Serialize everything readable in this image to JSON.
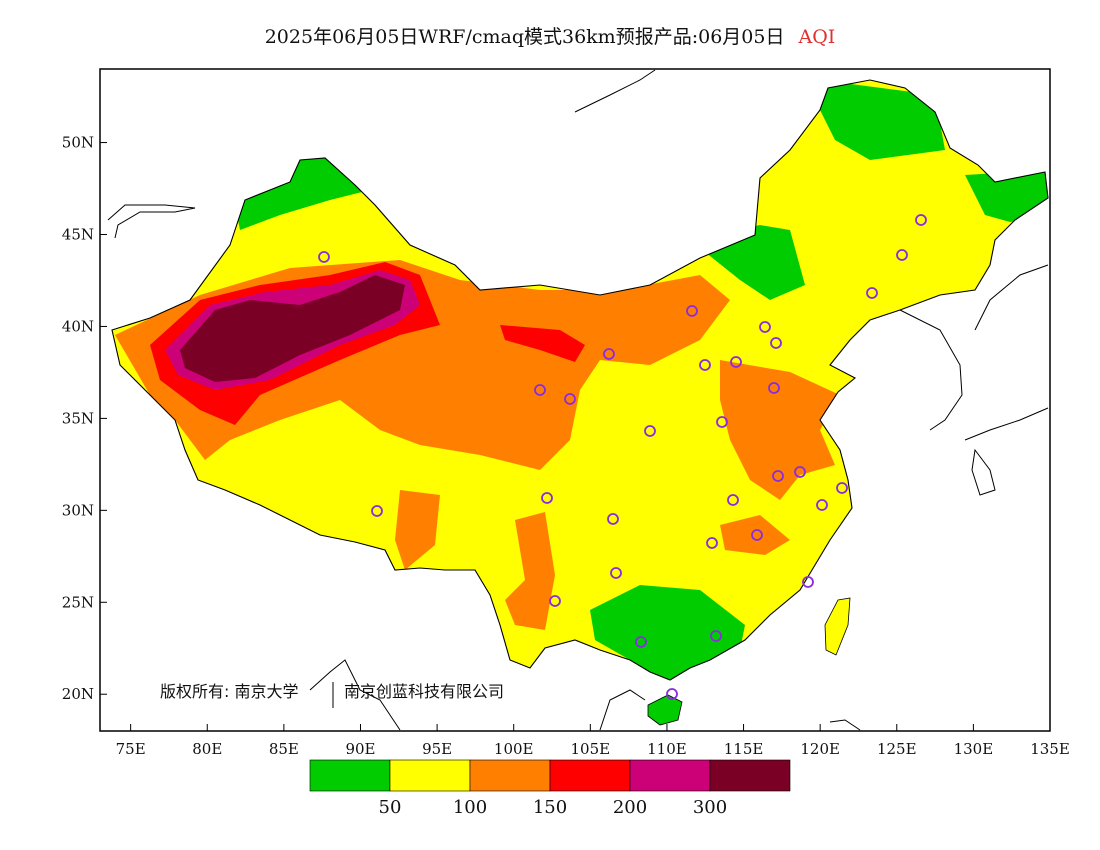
{
  "header": {
    "title": "2025年06月05日WRF/cmaq模式36km预报产品:06月05日",
    "variable": "AQI"
  },
  "map": {
    "lon_range": [
      73,
      135
    ],
    "lat_range": [
      18,
      54
    ],
    "x_ticks": [
      "75E",
      "80E",
      "85E",
      "90E",
      "95E",
      "100E",
      "105E",
      "110E",
      "115E",
      "120E",
      "125E",
      "130E",
      "135E"
    ],
    "y_ticks": [
      "50N",
      "45N",
      "40N",
      "35N",
      "30N",
      "25N",
      "20N"
    ],
    "copyright": "版权所有: 南京大学",
    "copyright2": "南京创蓝科技有限公司",
    "city_marker_color": "#8a2be2"
  },
  "legend": {
    "colors": [
      "#00cc00",
      "#ffff00",
      "#ff8000",
      "#ff0000",
      "#cc0077",
      "#7a0025"
    ],
    "labels": [
      "50",
      "100",
      "150",
      "200",
      "300"
    ]
  }
}
